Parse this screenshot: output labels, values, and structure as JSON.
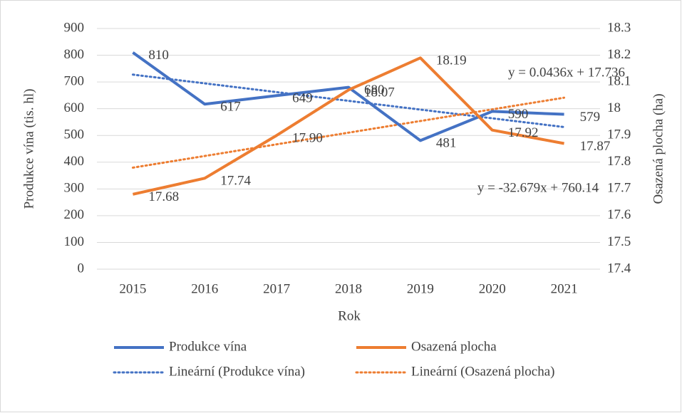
{
  "chart_data": {
    "type": "line",
    "categories": [
      "2015",
      "2016",
      "2017",
      "2018",
      "2019",
      "2020",
      "2021"
    ],
    "series": [
      {
        "name": "Produkce vína",
        "color": "#4472c4",
        "axis": "y",
        "values": [
          810,
          617,
          649,
          680,
          481,
          590,
          579
        ]
      },
      {
        "name": "Osazená plocha",
        "color": "#ed7d31",
        "axis": "y2",
        "values": [
          17.68,
          17.74,
          17.9,
          18.07,
          18.19,
          17.92,
          17.87
        ],
        "value_labels": [
          "17.68",
          "17.74",
          "17.90",
          "18.07",
          "18.19",
          "17.92",
          "17.87"
        ]
      }
    ],
    "trendlines": [
      {
        "name": "Lineární (Produkce vína)",
        "color": "#4472c4",
        "axis": "y",
        "slope": -32.679,
        "intercept": 760.14,
        "equation": "y = -32.679x + 760.14"
      },
      {
        "name": "Lineární (Osazená plocha)",
        "color": "#ed7d31",
        "axis": "y2",
        "slope": 0.0436,
        "intercept": 17.736,
        "equation": "y = 0.0436x + 17.736"
      }
    ],
    "xlabel": "Rok",
    "ylabel": "Produkce vína (tis. hl)",
    "y2label": "Osazená plocha (ha)",
    "ylim": [
      0,
      900
    ],
    "yticks": [
      0,
      100,
      200,
      300,
      400,
      500,
      600,
      700,
      800,
      900
    ],
    "y2lim": [
      17.4,
      18.3
    ],
    "y2ticks": [
      17.4,
      17.5,
      17.6,
      17.7,
      17.8,
      17.9,
      18,
      18.1,
      18.2,
      18.3
    ],
    "grid": true,
    "legend": "bottom"
  }
}
